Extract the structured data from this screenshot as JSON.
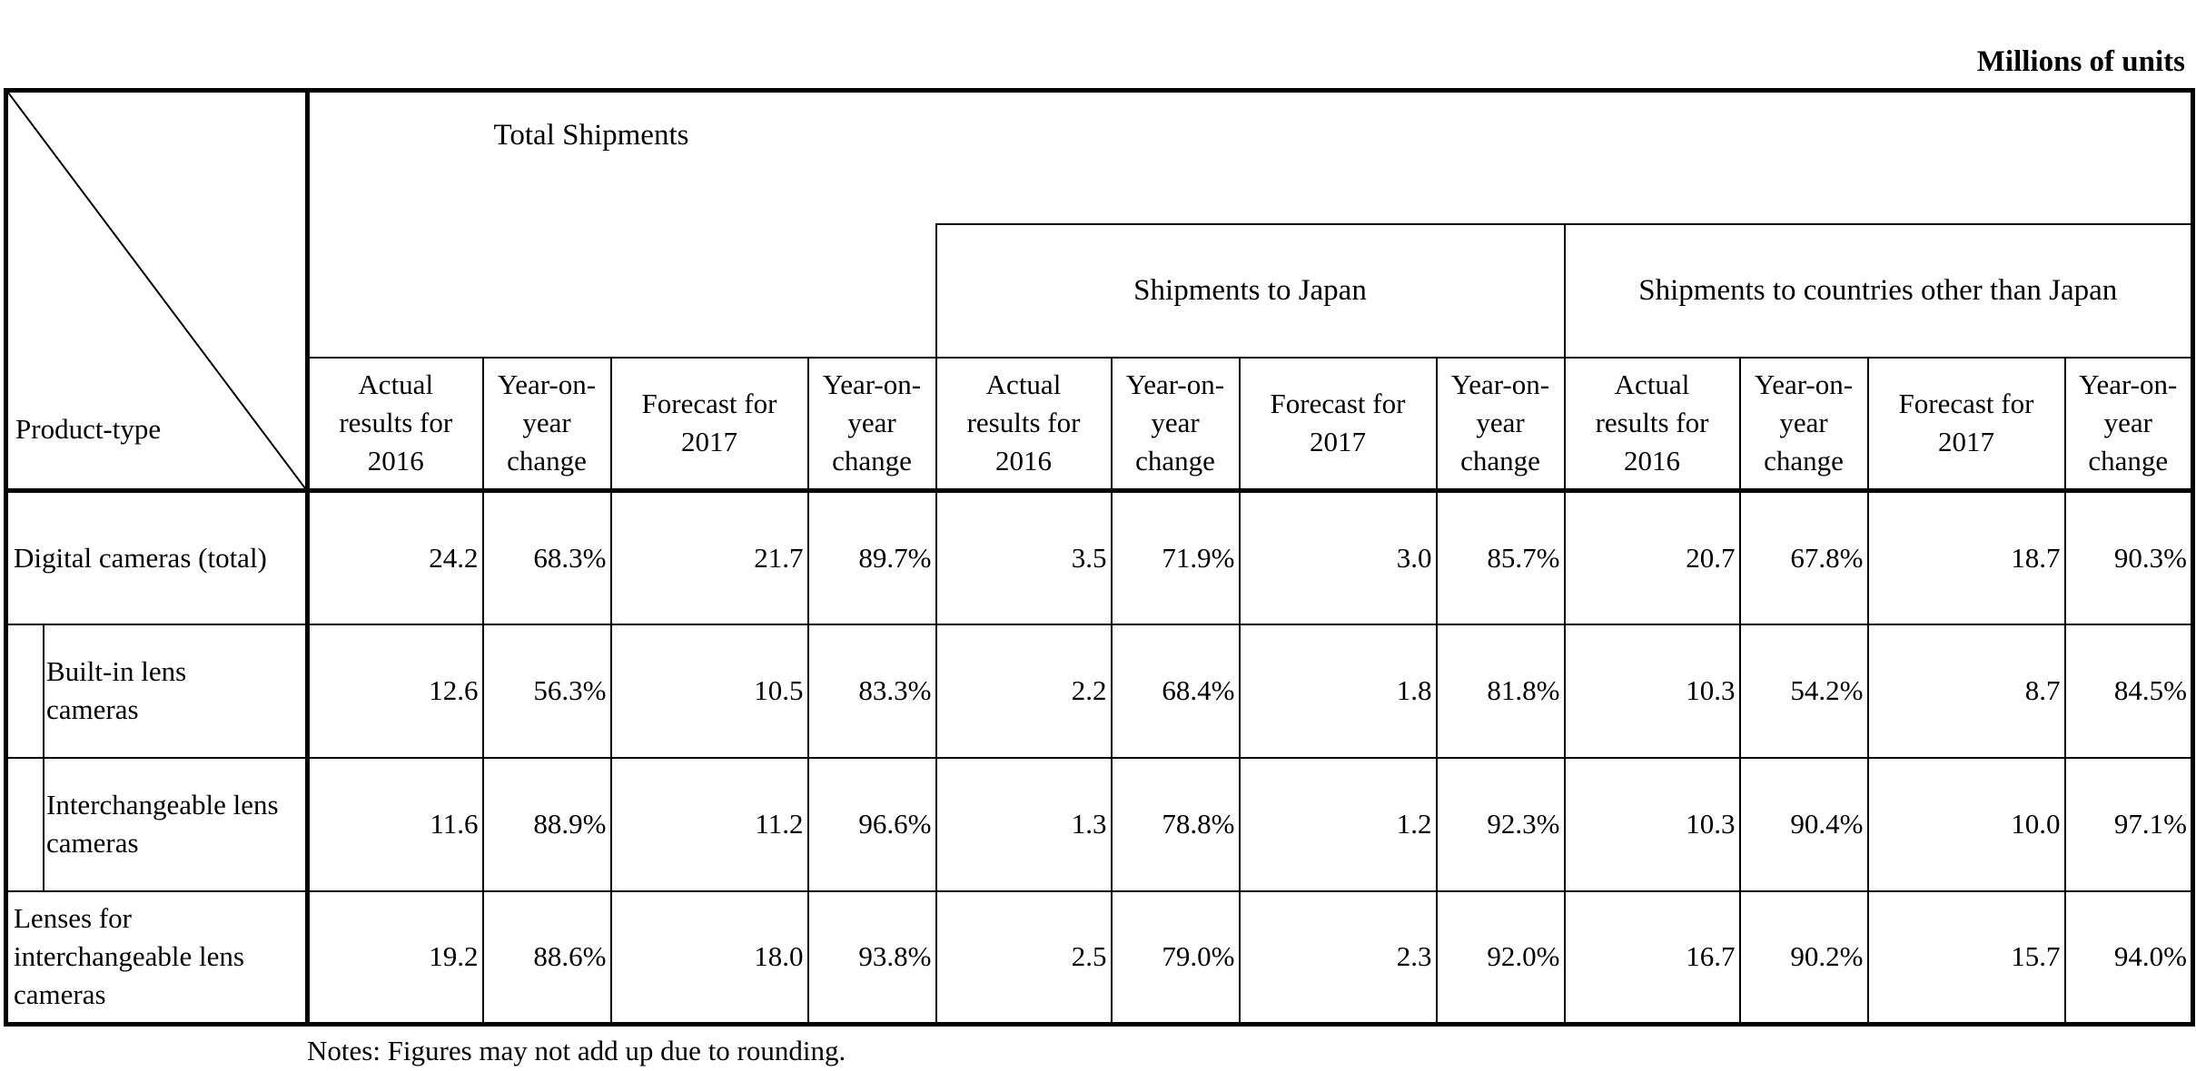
{
  "unit_label": "Millions of units",
  "corner_label": "Product-type",
  "bands": {
    "total": "Total Shipments",
    "japan": "Shipments to Japan",
    "other": "Shipments to countries other than Japan"
  },
  "col_headers": {
    "actual": [
      "Actual",
      "results for",
      "2016"
    ],
    "yoy": [
      "Year-on-",
      "year",
      "change"
    ],
    "forecast": [
      "Forecast for",
      "2017"
    ]
  },
  "rows": [
    {
      "label": [
        "Digital cameras (total)"
      ],
      "indent": false,
      "values": [
        "24.2",
        "68.3%",
        "21.7",
        "89.7%",
        "3.5",
        "71.9%",
        "3.0",
        "85.7%",
        "20.7",
        "67.8%",
        "18.7",
        "90.3%"
      ]
    },
    {
      "label": [
        "Built-in lens",
        "cameras"
      ],
      "indent": true,
      "values": [
        "12.6",
        "56.3%",
        "10.5",
        "83.3%",
        "2.2",
        "68.4%",
        "1.8",
        "81.8%",
        "10.3",
        "54.2%",
        "8.7",
        "84.5%"
      ]
    },
    {
      "label": [
        "Interchangeable lens",
        "cameras"
      ],
      "indent": true,
      "values": [
        "11.6",
        "88.9%",
        "11.2",
        "96.6%",
        "1.3",
        "78.8%",
        "1.2",
        "92.3%",
        "10.3",
        "90.4%",
        "10.0",
        "97.1%"
      ]
    },
    {
      "label": [
        "Lenses for",
        "interchangeable lens",
        "cameras"
      ],
      "indent": false,
      "values": [
        "19.2",
        "88.6%",
        "18.0",
        "93.8%",
        "2.5",
        "79.0%",
        "2.3",
        "92.0%",
        "16.7",
        "90.2%",
        "15.7",
        "94.0%"
      ]
    }
  ],
  "notes": "Notes: Figures may not add up due to rounding."
}
